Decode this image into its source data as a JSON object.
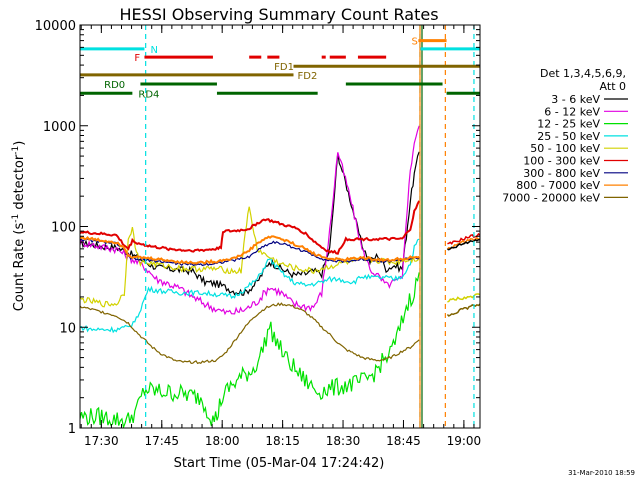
{
  "chart_data": {
    "type": "line",
    "title": "HESSI Observing Summary Count Rates",
    "xlabel": "Start Time (05-Mar-04 17:24:42)",
    "ylabel": "Count Rate (s⁻¹ detector⁻¹)",
    "ylabel_parts": [
      "Count Rate (s",
      "-1",
      " detector",
      "-1",
      ")"
    ],
    "y_scale": "log",
    "ylim": [
      1,
      10000
    ],
    "xlim_minutes": [
      0,
      99.3
    ],
    "x_tick_labels": [
      "17:30",
      "17:45",
      "18:00",
      "18:15",
      "18:30",
      "18:45",
      "19:00"
    ],
    "x_tick_minutes": [
      5.3,
      20.3,
      35.3,
      50.3,
      65.3,
      80.3,
      95.3
    ],
    "y_tick_labels": [
      "1",
      "10",
      "100",
      "1000",
      "10000"
    ],
    "y_tick_values": [
      1,
      10,
      100,
      1000,
      10000
    ],
    "legend": {
      "header": "Det 1,3,4,5,6,9,",
      "header2": "Att 0",
      "placement": "right"
    },
    "series": [
      {
        "name": "3 - 6 keV",
        "color": "#000000",
        "x": [
          0,
          3,
          6,
          9,
          12,
          16,
          19,
          22,
          25,
          28,
          31,
          34,
          36,
          38,
          41,
          44,
          47,
          50,
          53,
          56,
          58,
          60,
          62,
          64,
          67,
          70,
          72,
          74,
          76,
          78,
          80,
          81,
          82,
          83,
          84.2
        ],
        "y": [
          68,
          66,
          63,
          62,
          55,
          45,
          39,
          38,
          37,
          36,
          28,
          27,
          25,
          23,
          22,
          28,
          45,
          38,
          33,
          34,
          36,
          34,
          60,
          520,
          190,
          65,
          45,
          52,
          38,
          41,
          38,
          80,
          180,
          330,
          550
        ]
      },
      {
        "name": "6 - 12 keV",
        "color": "#e100e1",
        "x": [
          0,
          3,
          6,
          9,
          12,
          16,
          19,
          22,
          25,
          28,
          31,
          34,
          36,
          38,
          41,
          44,
          47,
          50,
          53,
          56,
          58,
          60,
          62,
          64,
          67,
          70,
          72,
          74,
          76,
          78,
          80,
          81,
          82,
          83,
          84.2
        ],
        "y": [
          70,
          66,
          62,
          60,
          50,
          40,
          30,
          27,
          24,
          20,
          17,
          15,
          14,
          14,
          15,
          18,
          25,
          22,
          17,
          16,
          16,
          22,
          90,
          560,
          200,
          60,
          38,
          32,
          26,
          28,
          30,
          120,
          360,
          700,
          1000
        ]
      },
      {
        "name": "12 - 25 keV",
        "color": "#00e100",
        "x": [
          0,
          5,
          10,
          12,
          14,
          16,
          20,
          25,
          30,
          33,
          34,
          35,
          37,
          40,
          43,
          45,
          47,
          49,
          51,
          53,
          55,
          57,
          59,
          61,
          63,
          65,
          67,
          69,
          71,
          73,
          75,
          77,
          79,
          81,
          83,
          84.2
        ],
        "y": [
          1.3,
          1.3,
          1.2,
          1.2,
          1.5,
          2.4,
          2.3,
          2.2,
          2.0,
          1.2,
          1.3,
          1.9,
          2.5,
          3.2,
          3.8,
          5.5,
          10.0,
          7.0,
          5.0,
          4.0,
          3.2,
          2.7,
          2.3,
          2.4,
          2.5,
          2.6,
          2.7,
          2.8,
          3.0,
          3.5,
          4.5,
          5.5,
          8.5,
          16.0,
          23.0,
          35.0
        ]
      },
      {
        "name": "25 - 50 keV",
        "color": "#00e1e1",
        "x": [
          0,
          3,
          6,
          9,
          12,
          14,
          17,
          20,
          25,
          30,
          35,
          38,
          41,
          44,
          47,
          50,
          53,
          56,
          58,
          60,
          62,
          64,
          66,
          68,
          70,
          72,
          74,
          76,
          78,
          80,
          82,
          83,
          84.2
        ],
        "y": [
          10,
          9.5,
          9.5,
          9.5,
          10,
          12,
          24,
          23,
          22,
          22,
          21,
          20,
          24,
          30,
          48,
          35,
          28,
          26,
          27,
          28,
          30,
          30,
          29,
          28,
          32,
          31,
          31,
          31,
          30,
          32,
          43,
          62,
          75
        ]
      },
      {
        "name": "50 - 100 keV",
        "color": "#d2d200",
        "x": [
          0,
          3,
          6,
          9,
          11,
          12,
          13,
          14,
          15,
          18,
          22,
          26,
          30,
          34,
          38,
          40,
          41,
          42,
          44,
          46,
          48,
          50,
          52,
          54,
          56,
          58,
          60,
          62,
          64,
          66,
          68,
          70,
          72,
          74,
          76,
          78,
          80,
          82,
          84.2
        ],
        "y": [
          19,
          18,
          17,
          17,
          22,
          80,
          95,
          55,
          44,
          43,
          40,
          38,
          38,
          38,
          36,
          36,
          90,
          150,
          60,
          52,
          47,
          42,
          40,
          38,
          37,
          36,
          38,
          40,
          42,
          44,
          45,
          46,
          47,
          46,
          45,
          44,
          46,
          47,
          48
        ]
      },
      {
        "name": "100 - 300 keV",
        "color": "#e10000",
        "x": [
          0,
          3,
          6,
          9,
          11,
          12,
          13,
          15,
          18,
          22,
          26,
          30,
          34,
          35,
          35.5,
          38,
          40,
          42,
          44,
          46,
          48,
          50,
          52,
          54,
          56,
          58,
          60,
          62,
          64,
          66,
          68,
          70,
          72,
          74,
          76,
          78,
          80,
          82,
          83,
          84.2
        ],
        "y": [
          88,
          86,
          84,
          82,
          65,
          60,
          72,
          67,
          63,
          60,
          58,
          58,
          60,
          63,
          90,
          90,
          92,
          95,
          108,
          118,
          112,
          105,
          100,
          95,
          85,
          72,
          62,
          56,
          55,
          75,
          75,
          75,
          75,
          75,
          75,
          75,
          75,
          95,
          140,
          180
        ]
      },
      {
        "name": "300 - 800 keV",
        "color": "#000080",
        "x": [
          0,
          3,
          6,
          9,
          11,
          12,
          13,
          15,
          18,
          22,
          26,
          30,
          34,
          36,
          38,
          40,
          42,
          44,
          46,
          48,
          50,
          52,
          54,
          56,
          58,
          60,
          62,
          64,
          66,
          68,
          70,
          72,
          74,
          76,
          78,
          80,
          82,
          84.2
        ],
        "y": [
          75,
          72,
          70,
          68,
          60,
          50,
          48,
          47,
          46,
          44,
          42,
          42,
          43,
          45,
          46,
          48,
          50,
          58,
          65,
          70,
          68,
          64,
          60,
          56,
          52,
          48,
          46,
          45,
          45,
          46,
          47,
          47,
          46,
          45,
          46,
          47,
          48,
          49
        ]
      },
      {
        "name": "800 - 7000 keV",
        "color": "#ff8000",
        "x": [
          0,
          3,
          6,
          9,
          11,
          12,
          13,
          15,
          18,
          22,
          26,
          30,
          34,
          36,
          38,
          40,
          42,
          44,
          46,
          48,
          50,
          52,
          54,
          56,
          58,
          60,
          62,
          64,
          66,
          68,
          70,
          72,
          74,
          76,
          78,
          80,
          82,
          84.2
        ],
        "y": [
          78,
          75,
          72,
          70,
          62,
          52,
          50,
          49,
          48,
          46,
          44,
          44,
          45,
          47,
          48,
          52,
          58,
          68,
          76,
          80,
          75,
          70,
          65,
          60,
          54,
          50,
          48,
          47,
          47,
          48,
          49,
          48,
          47,
          46,
          47,
          48,
          49,
          50
        ]
      },
      {
        "name": "7000 - 20000 keV",
        "color": "#806400",
        "x": [
          0,
          3,
          6,
          9,
          12,
          14,
          16,
          18,
          20,
          22,
          24,
          26,
          28,
          30,
          32,
          34,
          36,
          38,
          40,
          43,
          46,
          48,
          50,
          52,
          54,
          56,
          58,
          60,
          62,
          64,
          66,
          68,
          70,
          72,
          74,
          76,
          78,
          80,
          82,
          84.2
        ],
        "y": [
          16,
          15,
          14,
          13,
          11,
          9,
          7.5,
          6.3,
          5.5,
          5.0,
          4.6,
          4.5,
          4.5,
          4.5,
          4.6,
          4.7,
          5.5,
          7.0,
          9.0,
          12.5,
          15.5,
          16.5,
          17,
          16.5,
          15.5,
          14,
          12,
          10,
          8.5,
          7,
          6,
          5.5,
          5.0,
          4.8,
          4.7,
          4.8,
          5.2,
          5.8,
          6.3,
          7.5
        ]
      }
    ],
    "after_gap_series": [
      {
        "name": "100 - 300 keV",
        "color": "#e10000",
        "x": [
          91.2,
          93,
          95,
          97,
          99.3
        ],
        "y": [
          66,
          70,
          75,
          80,
          82
        ]
      },
      {
        "name": "800 - 7000 keV",
        "color": "#ff8000",
        "x": [
          91.2,
          93,
          95,
          97,
          99.3
        ],
        "y": [
          60,
          65,
          70,
          74,
          76
        ]
      },
      {
        "name": "3 - 6 keV",
        "color": "#000000",
        "x": [
          91.2,
          93,
          95,
          97,
          99.3
        ],
        "y": [
          58,
          62,
          67,
          71,
          74
        ]
      },
      {
        "name": "50 - 100 keV",
        "color": "#d2d200",
        "x": [
          91.2,
          93,
          95,
          97,
          99.3
        ],
        "y": [
          18,
          19,
          19.5,
          20,
          21
        ]
      },
      {
        "name": "7000 - 20000 keV",
        "color": "#806400",
        "x": [
          91.2,
          93,
          95,
          97,
          99.3
        ],
        "y": [
          13,
          14,
          15,
          16,
          17
        ]
      }
    ],
    "annotations": {
      "segments": [
        {
          "label": "N",
          "color": "#00e1e1",
          "y": 5800,
          "ranges": [
            [
              0,
              16
            ]
          ],
          "label_at": 17.5
        },
        {
          "label": "N",
          "color": "#00e1e1",
          "y": 5800,
          "ranges": [
            [
              84.5,
              99.3
            ]
          ],
          "label_at": null
        },
        {
          "label": "S",
          "color": "#ff8000",
          "y": 7000,
          "ranges": [
            [
              84,
              91
            ]
          ],
          "label_at": 82.3
        },
        {
          "label": "F",
          "color": "#e10000",
          "y": 4800,
          "ranges": [
            [
              16,
              33
            ],
            [
              42,
              45
            ],
            [
              46.5,
              49.5
            ],
            [
              60,
              61
            ],
            [
              62,
              66
            ],
            [
              69,
              76
            ]
          ],
          "label_at": 13.5
        },
        {
          "label": "FD1",
          "color": "#806400",
          "y": 3900,
          "ranges": [
            [
              53,
              99.3
            ]
          ],
          "label_at": 48.2
        },
        {
          "label": "FD2",
          "color": "#806400",
          "y": 3200,
          "ranges": [
            [
              0,
              53
            ]
          ],
          "label_at": 54
        },
        {
          "label": "RD0",
          "color": "#006400",
          "y": 2600,
          "ranges": [
            [
              15,
              34
            ],
            [
              66,
              90
            ]
          ],
          "label_at": 6
        },
        {
          "label": "RD4",
          "color": "#006400",
          "y": 2100,
          "ranges": [
            [
              0,
              13
            ],
            [
              34,
              59
            ],
            [
              91,
              99.3
            ]
          ],
          "label_at": 14.5
        }
      ],
      "vertical_lines": [
        {
          "minutes": 16.3,
          "color": "#00e1e1",
          "dashed": true
        },
        {
          "minutes": 84.4,
          "color": "#00e1e1",
          "dashed": true
        },
        {
          "minutes": 97.8,
          "color": "#00e1e1",
          "dashed": true
        },
        {
          "minutes": 90.7,
          "color": "#ff8000",
          "dashed": true
        },
        {
          "minutes": 84.4,
          "color": "#ff8000",
          "dashed": false
        },
        {
          "minutes": 84.9,
          "color": "#006400",
          "dashed": false
        }
      ]
    },
    "grid": false,
    "footer_stamp": "31-Mar-2010 18:59"
  }
}
